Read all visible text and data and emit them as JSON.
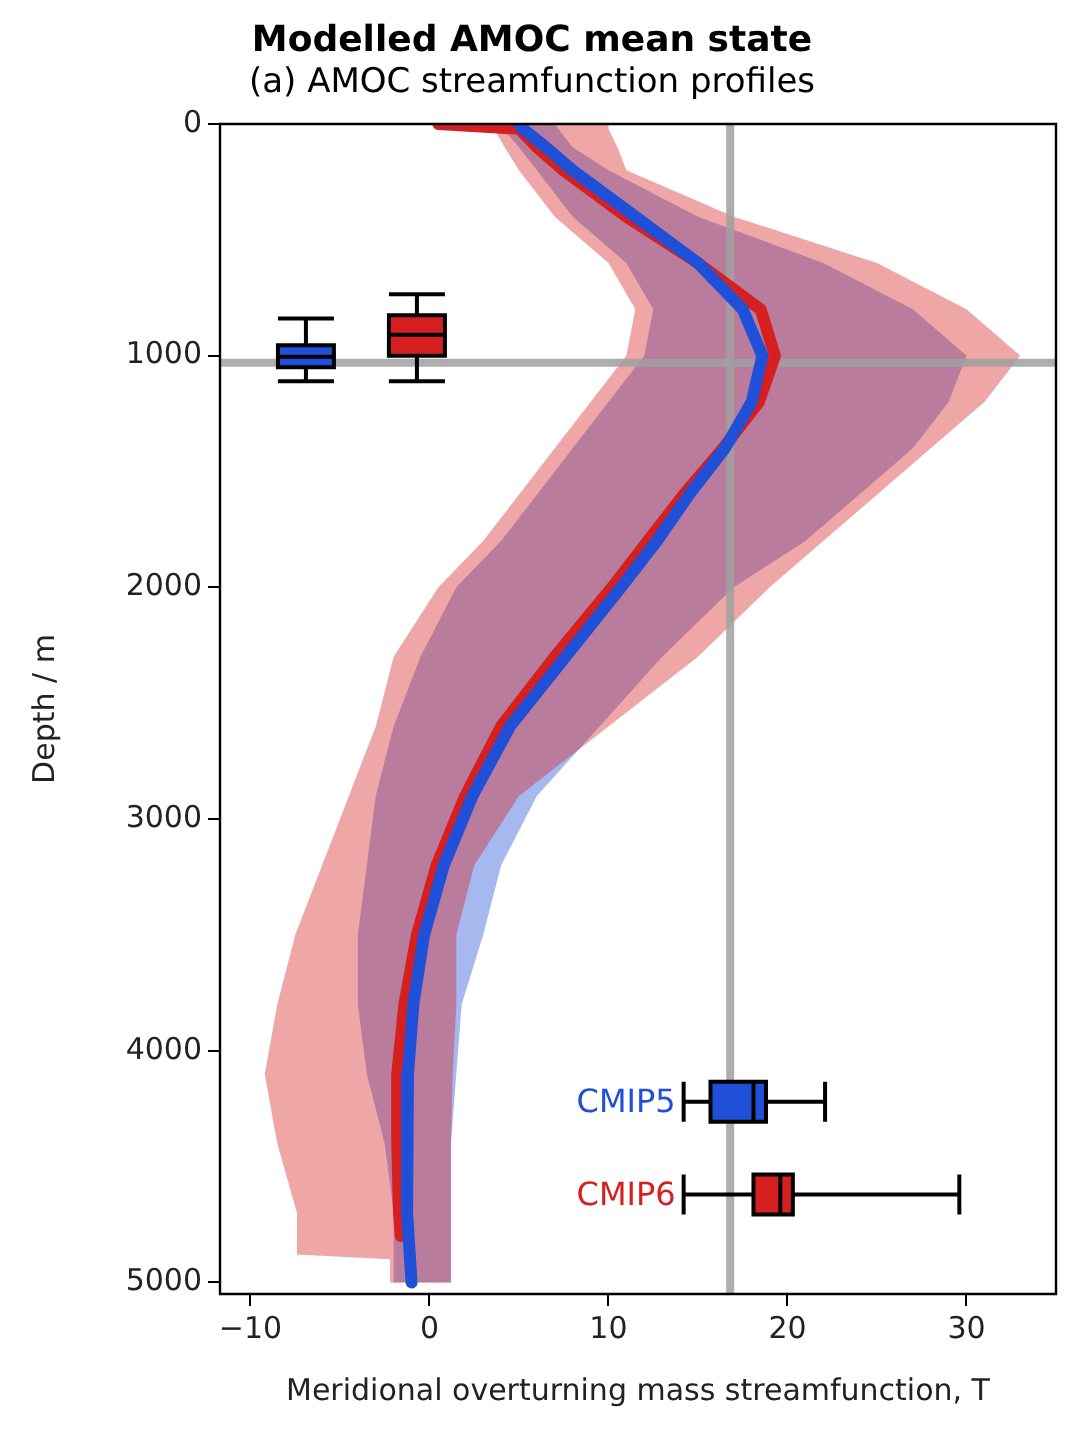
{
  "chart_data": [
    {
      "type": "line",
      "orientation": "horizontal",
      "title": "Modelled AMOC mean state",
      "subtitle": "(a) AMOC streamfunction profiles",
      "xlabel": "Meridional overturning mass streamfunction, T",
      "ylabel": "Depth / m",
      "xlim": [
        -11.7,
        35
      ],
      "xticks": [
        -10,
        0,
        10,
        20,
        30
      ],
      "ylim": [
        5050,
        0
      ],
      "yticks": [
        0,
        1000,
        2000,
        3000,
        4000,
        5000
      ],
      "grid": false,
      "legend": false,
      "ref_lines": [
        {
          "axis": "x",
          "value": 16.8,
          "color": "#a0a0a0"
        },
        {
          "axis": "y",
          "value": 1030,
          "color": "#a0a0a0"
        }
      ],
      "series": [
        {
          "color": "#2050d8",
          "x": [
            0,
            20,
            100,
            200,
            400,
            600,
            800,
            1000,
            1200,
            1400,
            1600,
            1800,
            2000,
            2300,
            2600,
            2900,
            3200,
            3500,
            3800,
            4100,
            4400,
            4700,
            5000
          ],
          "values": [
            5,
            5.2,
            6.5,
            8,
            11.5,
            15,
            17.5,
            18.6,
            18,
            16.5,
            14.5,
            12.7,
            10.7,
            7.6,
            4.5,
            2.4,
            0.8,
            -0.3,
            -0.9,
            -1.2,
            -1.3,
            -1.2,
            -1.0
          ],
          "lower": [
            4,
            4.1,
            5,
            6,
            8,
            11,
            12.5,
            12,
            10,
            8,
            6,
            4,
            1.5,
            -0.5,
            -2,
            -3,
            -3.5,
            -4,
            -4,
            -3.5,
            -2.5,
            -2,
            -2
          ],
          "upper": [
            7,
            7.2,
            8,
            10,
            15,
            22,
            27,
            30,
            29,
            27,
            24,
            21,
            17,
            13,
            9.5,
            6,
            4,
            3,
            1.8,
            1.5,
            1.2,
            1.2,
            1.2
          ]
        },
        {
          "color": "#d62020",
          "x": [
            0,
            20,
            100,
            200,
            400,
            600,
            800,
            1000,
            1200,
            1400,
            1600,
            1800,
            2000,
            2300,
            2600,
            2900,
            3200,
            3500,
            3800,
            4100,
            4400,
            4700,
            4800,
            4880,
            4900,
            5000
          ],
          "values": [
            0.5,
            5,
            6,
            7.5,
            11,
            15,
            18.5,
            19.3,
            18.4,
            16.4,
            14.2,
            12.2,
            10.2,
            7,
            4,
            2,
            0.4,
            -0.7,
            -1.4,
            -1.8,
            -1.8,
            -1.7,
            -1.6,
            null,
            null,
            null
          ],
          "lower": [
            3.5,
            3.6,
            4.2,
            5,
            7,
            10,
            11.5,
            11,
            9,
            7,
            5,
            3,
            0.5,
            -2,
            -3,
            -4.5,
            -6,
            -7.5,
            -8.5,
            -9.2,
            -8.5,
            -7.4,
            -7.4,
            -7.4,
            -2.2,
            -2.2
          ],
          "upper": [
            10,
            10,
            10.5,
            11,
            17,
            25,
            30,
            33,
            31,
            28,
            25,
            22,
            19,
            15,
            10,
            5,
            2.5,
            1.5,
            1.5,
            1.3,
            1.2,
            1.2,
            1.2,
            1.2,
            1.2,
            1.2
          ]
        },
        {
          "type": "box",
          "name": "CMIP5",
          "color": "#2050d8",
          "x": [
            4220
          ],
          "boxes": [
            {
              "low": 14.2,
              "q1": 15.7,
              "median": 18.1,
              "q3": 18.8,
              "high": 22.1
            }
          ]
        },
        {
          "type": "box",
          "name": "CMIP6",
          "color": "#d62020",
          "x": [
            4620
          ],
          "boxes": [
            {
              "low": 14.2,
              "q1": 18.1,
              "median": 19.6,
              "q3": 20.3,
              "high": 29.6
            }
          ]
        }
      ]
    },
    {
      "type": "box",
      "xlim": [
        -11.7,
        35
      ],
      "xticks": [
        -10,
        0,
        10,
        20,
        30
      ],
      "ylim": [
        5050,
        0
      ],
      "yticks": [
        0,
        1000,
        2000,
        3000,
        4000,
        5000
      ],
      "tick_labels": false,
      "series": [
        {
          "color": "#2050d8",
          "x": [
            -6.9
          ],
          "boxes": [
            {
              "low": 840,
              "q1": 955,
              "median": 1005,
              "q3": 1050,
              "high": 1110
            }
          ]
        },
        {
          "color": "#d62020",
          "x": [
            -0.7
          ],
          "boxes": [
            {
              "low": 735,
              "q1": 825,
              "median": 910,
              "q3": 1000,
              "high": 1110
            }
          ]
        }
      ]
    }
  ]
}
